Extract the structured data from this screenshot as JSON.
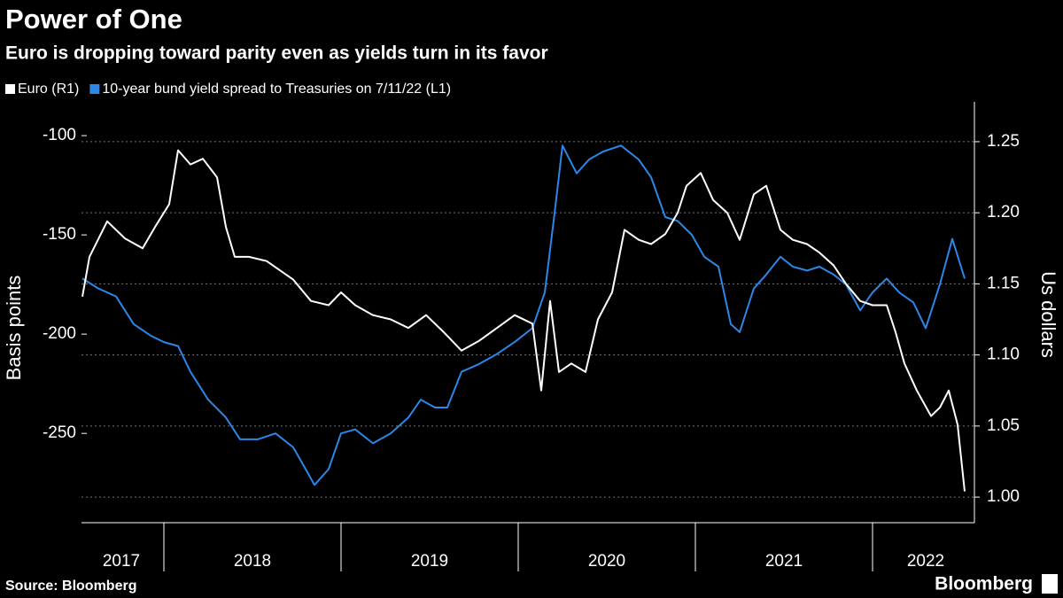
{
  "chart_data": {
    "type": "line",
    "title": "Power of One",
    "subtitle": "Euro is dropping toward parity even as yields turn in its favor",
    "y_label": "Basis points",
    "y2_label": "Us dollars",
    "source": "Source: Bloomberg",
    "brand": "Bloomberg",
    "xlim": [
      2017.535,
      2022.575
    ],
    "xticks": [
      {
        "value": 2017.5,
        "label": "2017"
      },
      {
        "value": 2018.5,
        "label": "2018"
      },
      {
        "value": 2019.5,
        "label": "2019"
      },
      {
        "value": 2020.5,
        "label": "2020"
      },
      {
        "value": 2021.5,
        "label": "2021"
      },
      {
        "value": 2022.3,
        "label": "2022"
      }
    ],
    "ylim": [
      -295,
      -83
    ],
    "yticks": [
      -100,
      -150,
      -200,
      -250
    ],
    "y2lim": [
      0.982,
      1.278
    ],
    "y2ticks": [
      {
        "value": 1.25,
        "label": "1.25"
      },
      {
        "value": 1.2,
        "label": "1.20"
      },
      {
        "value": 1.15,
        "label": "1.15"
      },
      {
        "value": 1.1,
        "label": "1.10"
      },
      {
        "value": 1.05,
        "label": "1.05"
      },
      {
        "value": 1.0,
        "label": "1.00"
      }
    ],
    "grid": true,
    "series": [
      {
        "name": "Euro  (R1)",
        "color": "#ffffff",
        "axis": "y2",
        "x": [
          2017.54,
          2017.58,
          2017.68,
          2017.78,
          2017.88,
          2017.95,
          2018.03,
          2018.08,
          2018.15,
          2018.22,
          2018.3,
          2018.35,
          2018.4,
          2018.48,
          2018.58,
          2018.65,
          2018.73,
          2018.83,
          2018.93,
          2019.0,
          2019.08,
          2019.18,
          2019.28,
          2019.38,
          2019.48,
          2019.58,
          2019.68,
          2019.78,
          2019.88,
          2019.98,
          2020.08,
          2020.13,
          2020.18,
          2020.23,
          2020.3,
          2020.38,
          2020.45,
          2020.53,
          2020.6,
          2020.68,
          2020.75,
          2020.83,
          2020.9,
          2020.95,
          2021.03,
          2021.1,
          2021.18,
          2021.25,
          2021.33,
          2021.4,
          2021.48,
          2021.55,
          2021.63,
          2021.7,
          2021.78,
          2021.85,
          2021.93,
          2022.0,
          2022.08,
          2022.13,
          2022.18,
          2022.25,
          2022.33,
          2022.38,
          2022.43,
          2022.48,
          2022.52
        ],
        "values": [
          1.141,
          1.169,
          1.194,
          1.182,
          1.175,
          1.19,
          1.206,
          1.244,
          1.234,
          1.238,
          1.225,
          1.19,
          1.169,
          1.169,
          1.166,
          1.16,
          1.153,
          1.138,
          1.135,
          1.144,
          1.135,
          1.128,
          1.125,
          1.119,
          1.128,
          1.116,
          1.103,
          1.11,
          1.119,
          1.128,
          1.122,
          1.075,
          1.138,
          1.088,
          1.094,
          1.088,
          1.125,
          1.144,
          1.188,
          1.181,
          1.178,
          1.185,
          1.2,
          1.219,
          1.228,
          1.209,
          1.2,
          1.181,
          1.213,
          1.219,
          1.188,
          1.181,
          1.178,
          1.172,
          1.163,
          1.15,
          1.138,
          1.135,
          1.135,
          1.116,
          1.094,
          1.075,
          1.057,
          1.063,
          1.075,
          1.051,
          1.004
        ]
      },
      {
        "name": "10-year bund yield spread to Treasuries on 7/11/22 (L1)",
        "color": "#2b87e8",
        "axis": "y",
        "x": [
          2017.54,
          2017.63,
          2017.73,
          2017.83,
          2017.93,
          2018.0,
          2018.08,
          2018.15,
          2018.25,
          2018.35,
          2018.43,
          2018.53,
          2018.63,
          2018.73,
          2018.8,
          2018.85,
          2018.93,
          2019.0,
          2019.08,
          2019.18,
          2019.28,
          2019.38,
          2019.45,
          2019.53,
          2019.6,
          2019.68,
          2019.78,
          2019.88,
          2019.98,
          2020.08,
          2020.15,
          2020.2,
          2020.25,
          2020.33,
          2020.4,
          2020.48,
          2020.58,
          2020.68,
          2020.75,
          2020.83,
          2020.9,
          2020.98,
          2021.05,
          2021.13,
          2021.2,
          2021.25,
          2021.33,
          2021.4,
          2021.48,
          2021.55,
          2021.63,
          2021.7,
          2021.78,
          2021.85,
          2021.93,
          2022.0,
          2022.08,
          2022.15,
          2022.23,
          2022.3,
          2022.38,
          2022.45,
          2022.52
        ],
        "values": [
          -172,
          -177,
          -181,
          -195,
          -201,
          -204,
          -206,
          -219,
          -233,
          -242,
          -253,
          -253,
          -250,
          -257,
          -268,
          -276,
          -268,
          -250,
          -248,
          -255,
          -250,
          -242,
          -233,
          -237,
          -237,
          -219,
          -215,
          -210,
          -204,
          -197,
          -179,
          -143,
          -105,
          -119,
          -112,
          -108,
          -105,
          -112,
          -121,
          -141,
          -143,
          -150,
          -161,
          -166,
          -195,
          -199,
          -177,
          -170,
          -161,
          -166,
          -168,
          -166,
          -170,
          -175,
          -188,
          -179,
          -172,
          -179,
          -184,
          -197,
          -175,
          -152,
          -172
        ]
      }
    ]
  }
}
